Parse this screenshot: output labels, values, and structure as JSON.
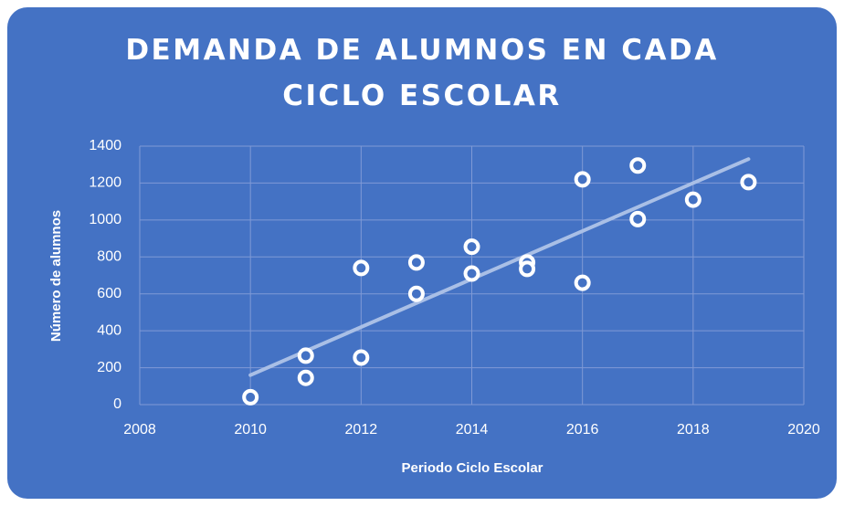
{
  "chart_data": {
    "type": "scatter",
    "title": "DEMANDA DE ALUMNOS EN CADA CICLO ESCOLAR",
    "x_label": "Periodo Ciclo Escolar",
    "y_label": "Número de alumnos",
    "x": [
      2010,
      2011,
      2011,
      2012,
      2012,
      2013,
      2013,
      2014,
      2014,
      2015,
      2015,
      2016,
      2016,
      2017,
      2017,
      2018,
      2019
    ],
    "values": [
      40,
      265,
      145,
      740,
      255,
      770,
      600,
      855,
      710,
      770,
      735,
      1220,
      660,
      1295,
      1005,
      1110,
      1205
    ],
    "trendline": {
      "x": [
        2010,
        2019
      ],
      "values": [
        160,
        1330
      ]
    },
    "xlim": [
      2008,
      2020
    ],
    "xticks": [
      2008,
      2010,
      2012,
      2014,
      2016,
      2018,
      2020
    ],
    "ylim": [
      0,
      1400
    ],
    "yticks": [
      0,
      200,
      400,
      600,
      800,
      1000,
      1200,
      1400
    ],
    "grid": true,
    "background": "#4472c4",
    "marker_color": "#ffffff",
    "trendline_color": "#a9bfe6",
    "grid_color": "#7f9ad6"
  }
}
